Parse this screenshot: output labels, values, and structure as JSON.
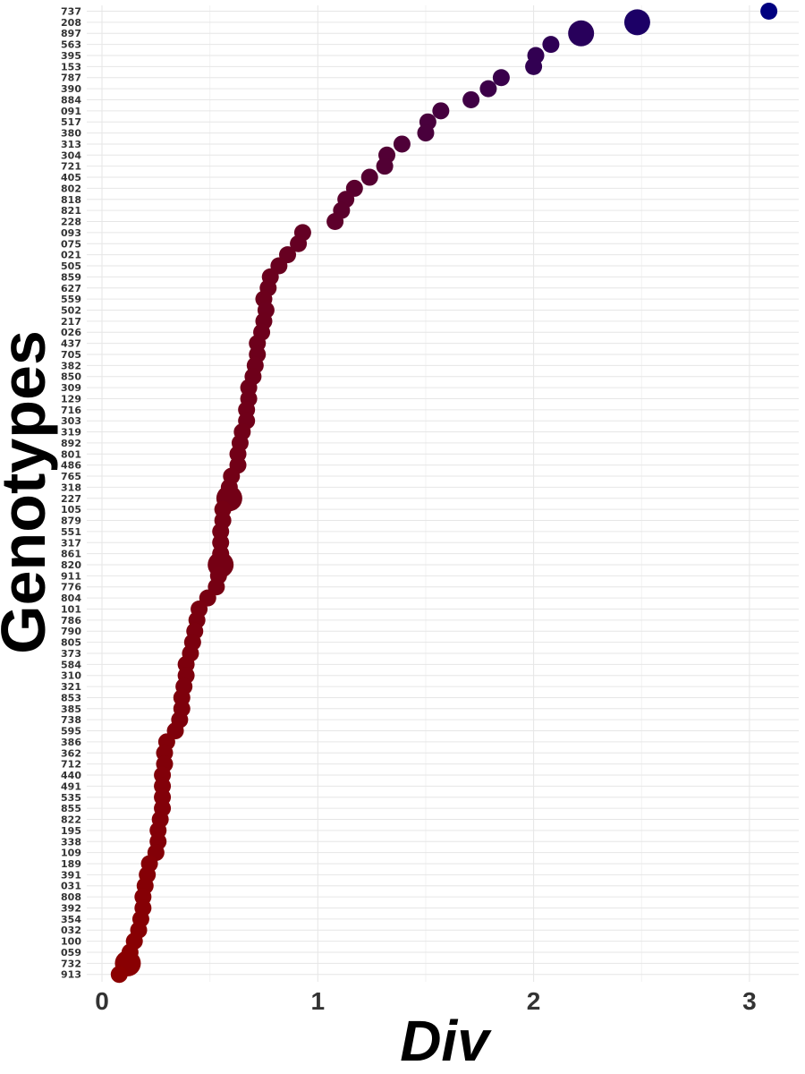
{
  "chart_data": {
    "type": "scatter",
    "xlabel": "Div",
    "ylabel": "Genotypes",
    "xlim": [
      -0.02,
      3.2
    ],
    "x_ticks": [
      0,
      1,
      2,
      3
    ],
    "grid": true,
    "legend": "none",
    "color_low": "#8b0000",
    "color_high": "#000080",
    "categories": [
      "737",
      "208",
      "897",
      "563",
      "395",
      "153",
      "787",
      "390",
      "884",
      "091",
      "517",
      "380",
      "313",
      "304",
      "721",
      "405",
      "802",
      "818",
      "821",
      "228",
      "093",
      "075",
      "021",
      "505",
      "859",
      "627",
      "559",
      "502",
      "217",
      "026",
      "437",
      "705",
      "382",
      "850",
      "309",
      "129",
      "716",
      "303",
      "319",
      "892",
      "801",
      "486",
      "765",
      "318",
      "227",
      "105",
      "879",
      "551",
      "317",
      "861",
      "820",
      "911",
      "776",
      "804",
      "101",
      "786",
      "790",
      "805",
      "373",
      "584",
      "310",
      "321",
      "853",
      "385",
      "738",
      "595",
      "386",
      "362",
      "712",
      "440",
      "491",
      "535",
      "855",
      "822",
      "195",
      "338",
      "109",
      "189",
      "391",
      "031",
      "808",
      "392",
      "354",
      "032",
      "100",
      "059",
      "732",
      "913"
    ],
    "points": [
      {
        "genotype": "737",
        "div": 3.09,
        "size": 1
      },
      {
        "genotype": "208",
        "div": 2.48,
        "size": 3
      },
      {
        "genotype": "897",
        "div": 2.22,
        "size": 3
      },
      {
        "genotype": "563",
        "div": 2.08,
        "size": 1
      },
      {
        "genotype": "395",
        "div": 2.01,
        "size": 1
      },
      {
        "genotype": "153",
        "div": 2.0,
        "size": 1
      },
      {
        "genotype": "787",
        "div": 1.85,
        "size": 1
      },
      {
        "genotype": "390",
        "div": 1.79,
        "size": 1
      },
      {
        "genotype": "884",
        "div": 1.71,
        "size": 1
      },
      {
        "genotype": "091",
        "div": 1.57,
        "size": 1
      },
      {
        "genotype": "517",
        "div": 1.51,
        "size": 1
      },
      {
        "genotype": "380",
        "div": 1.5,
        "size": 1
      },
      {
        "genotype": "313",
        "div": 1.39,
        "size": 1
      },
      {
        "genotype": "304",
        "div": 1.32,
        "size": 1
      },
      {
        "genotype": "721",
        "div": 1.31,
        "size": 1
      },
      {
        "genotype": "405",
        "div": 1.24,
        "size": 1
      },
      {
        "genotype": "802",
        "div": 1.17,
        "size": 1
      },
      {
        "genotype": "818",
        "div": 1.13,
        "size": 1
      },
      {
        "genotype": "821",
        "div": 1.11,
        "size": 1
      },
      {
        "genotype": "228",
        "div": 1.08,
        "size": 1
      },
      {
        "genotype": "093",
        "div": 0.93,
        "size": 1
      },
      {
        "genotype": "075",
        "div": 0.91,
        "size": 1
      },
      {
        "genotype": "021",
        "div": 0.86,
        "size": 1
      },
      {
        "genotype": "505",
        "div": 0.82,
        "size": 1
      },
      {
        "genotype": "859",
        "div": 0.78,
        "size": 1
      },
      {
        "genotype": "627",
        "div": 0.77,
        "size": 1
      },
      {
        "genotype": "559",
        "div": 0.75,
        "size": 1
      },
      {
        "genotype": "502",
        "div": 0.76,
        "size": 1
      },
      {
        "genotype": "217",
        "div": 0.75,
        "size": 1
      },
      {
        "genotype": "026",
        "div": 0.74,
        "size": 1
      },
      {
        "genotype": "437",
        "div": 0.72,
        "size": 1
      },
      {
        "genotype": "705",
        "div": 0.72,
        "size": 1
      },
      {
        "genotype": "382",
        "div": 0.71,
        "size": 1
      },
      {
        "genotype": "850",
        "div": 0.7,
        "size": 1
      },
      {
        "genotype": "309",
        "div": 0.68,
        "size": 1
      },
      {
        "genotype": "129",
        "div": 0.68,
        "size": 1
      },
      {
        "genotype": "716",
        "div": 0.67,
        "size": 1
      },
      {
        "genotype": "303",
        "div": 0.67,
        "size": 1
      },
      {
        "genotype": "319",
        "div": 0.65,
        "size": 1
      },
      {
        "genotype": "892",
        "div": 0.64,
        "size": 1
      },
      {
        "genotype": "801",
        "div": 0.63,
        "size": 1
      },
      {
        "genotype": "486",
        "div": 0.63,
        "size": 1
      },
      {
        "genotype": "765",
        "div": 0.6,
        "size": 1
      },
      {
        "genotype": "318",
        "div": 0.59,
        "size": 1
      },
      {
        "genotype": "227",
        "div": 0.59,
        "size": 3
      },
      {
        "genotype": "105",
        "div": 0.56,
        "size": 1
      },
      {
        "genotype": "879",
        "div": 0.56,
        "size": 1
      },
      {
        "genotype": "551",
        "div": 0.55,
        "size": 1
      },
      {
        "genotype": "317",
        "div": 0.55,
        "size": 1
      },
      {
        "genotype": "861",
        "div": 0.55,
        "size": 1
      },
      {
        "genotype": "820",
        "div": 0.55,
        "size": 3
      },
      {
        "genotype": "911",
        "div": 0.54,
        "size": 1
      },
      {
        "genotype": "776",
        "div": 0.53,
        "size": 1
      },
      {
        "genotype": "804",
        "div": 0.49,
        "size": 1
      },
      {
        "genotype": "101",
        "div": 0.45,
        "size": 1
      },
      {
        "genotype": "786",
        "div": 0.44,
        "size": 1
      },
      {
        "genotype": "790",
        "div": 0.43,
        "size": 1
      },
      {
        "genotype": "805",
        "div": 0.42,
        "size": 1
      },
      {
        "genotype": "373",
        "div": 0.41,
        "size": 1
      },
      {
        "genotype": "584",
        "div": 0.39,
        "size": 1
      },
      {
        "genotype": "310",
        "div": 0.39,
        "size": 1
      },
      {
        "genotype": "321",
        "div": 0.38,
        "size": 1
      },
      {
        "genotype": "853",
        "div": 0.37,
        "size": 1
      },
      {
        "genotype": "385",
        "div": 0.37,
        "size": 1
      },
      {
        "genotype": "738",
        "div": 0.36,
        "size": 1
      },
      {
        "genotype": "595",
        "div": 0.34,
        "size": 1
      },
      {
        "genotype": "386",
        "div": 0.3,
        "size": 1
      },
      {
        "genotype": "362",
        "div": 0.29,
        "size": 1
      },
      {
        "genotype": "712",
        "div": 0.29,
        "size": 1
      },
      {
        "genotype": "440",
        "div": 0.28,
        "size": 1
      },
      {
        "genotype": "491",
        "div": 0.28,
        "size": 1
      },
      {
        "genotype": "535",
        "div": 0.28,
        "size": 1
      },
      {
        "genotype": "855",
        "div": 0.28,
        "size": 1
      },
      {
        "genotype": "822",
        "div": 0.27,
        "size": 1
      },
      {
        "genotype": "195",
        "div": 0.26,
        "size": 1
      },
      {
        "genotype": "338",
        "div": 0.26,
        "size": 1
      },
      {
        "genotype": "109",
        "div": 0.25,
        "size": 1
      },
      {
        "genotype": "189",
        "div": 0.22,
        "size": 1
      },
      {
        "genotype": "391",
        "div": 0.21,
        "size": 1
      },
      {
        "genotype": "031",
        "div": 0.2,
        "size": 1
      },
      {
        "genotype": "808",
        "div": 0.19,
        "size": 1
      },
      {
        "genotype": "392",
        "div": 0.19,
        "size": 1
      },
      {
        "genotype": "354",
        "div": 0.18,
        "size": 1
      },
      {
        "genotype": "032",
        "div": 0.17,
        "size": 1
      },
      {
        "genotype": "100",
        "div": 0.15,
        "size": 1
      },
      {
        "genotype": "059",
        "div": 0.13,
        "size": 1
      },
      {
        "genotype": "732",
        "div": 0.12,
        "size": 3
      },
      {
        "genotype": "913",
        "div": 0.08,
        "size": 1
      }
    ]
  }
}
